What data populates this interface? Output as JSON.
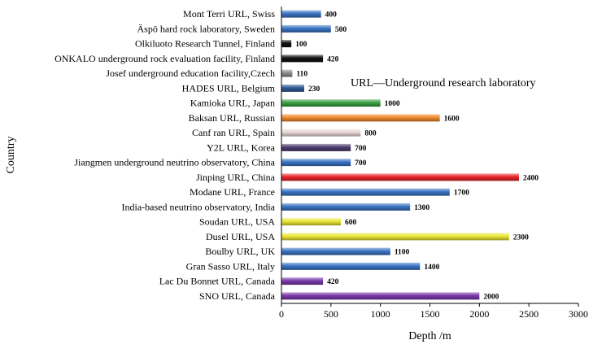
{
  "chart_data": {
    "type": "bar",
    "orientation": "horizontal",
    "title": "",
    "annotation": "URL—Underground research laboratory",
    "xlabel": "Depth /m",
    "ylabel": "Country",
    "xlim": [
      0,
      3000
    ],
    "xticks": [
      "0",
      "500",
      "1000",
      "1500",
      "2000",
      "2500",
      "3000"
    ],
    "grid": false,
    "legend": "none",
    "categories": [
      "Mont Terri URL, Swiss",
      "Äspö hard rock laboratory, Sweden",
      "Olkiluoto Research Tunnel, Finland",
      "ONKALO underground rock evaluation facility, Finland",
      "Josef underground education facility,Czech",
      "HADES URL, Belgium",
      "Kamioka URL, Japan",
      "Baksan URL, Russian",
      "Canf ran URL, Spain",
      "Y2L URL, Korea",
      "Jiangmen underground neutrino observatory, China",
      "Jinping URL, China",
      "Modane URL, France",
      "India-based neutrino observatory, India",
      "Soudan URL, USA",
      "Dusel URL, USA",
      "Boulby URL, UK",
      "Gran Sasso URL, Italy",
      "Lac Du Bonnet URL, Canada",
      "SNO URL, Canada"
    ],
    "values": [
      400,
      500,
      100,
      420,
      110,
      230,
      1000,
      1600,
      800,
      700,
      700,
      2400,
      1700,
      1300,
      600,
      2300,
      1100,
      1400,
      420,
      2000
    ],
    "colors": [
      "#3a74c4",
      "#3a74c4",
      "#111111",
      "#111111",
      "#8c8c8c",
      "#2f5b96",
      "#3aa042",
      "#f08a2c",
      "#e8d4d4",
      "#4e3c6e",
      "#3a74c4",
      "#e8252a",
      "#3a74c4",
      "#3a74c4",
      "#ece636",
      "#ece636",
      "#3a74c4",
      "#3a74c4",
      "#7a3aaa",
      "#7a3aaa"
    ]
  }
}
